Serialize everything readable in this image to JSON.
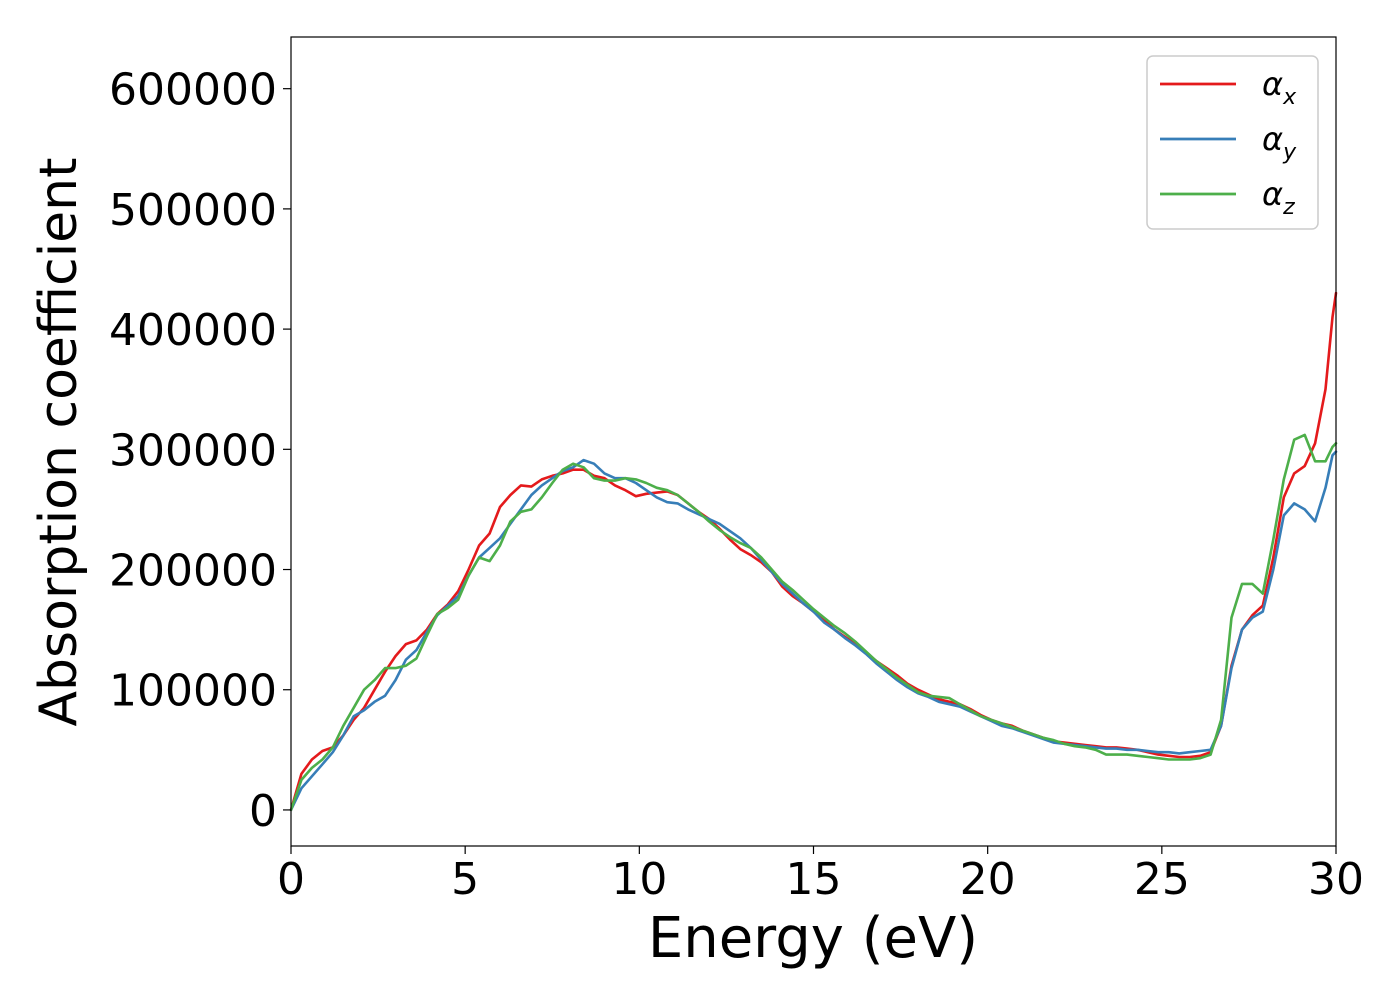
{
  "chart_data": {
    "type": "line",
    "title": "",
    "xlabel": "Energy (eV)",
    "ylabel": "Absorption coefficient",
    "xlim": [
      0,
      30
    ],
    "ylim": [
      -30000,
      643000
    ],
    "xticks": [
      0,
      5,
      10,
      15,
      20,
      25,
      30
    ],
    "xtick_labels": [
      "0",
      "5",
      "10",
      "15",
      "20",
      "25",
      "30"
    ],
    "yticks": [
      0,
      100000,
      200000,
      300000,
      400000,
      500000,
      600000
    ],
    "ytick_labels": [
      "0",
      "100000",
      "200000",
      "300000",
      "400000",
      "500000",
      "600000"
    ],
    "grid": false,
    "legend_position": "top-right",
    "series": [
      {
        "name": "αx",
        "symbol": "α",
        "subscript": "x",
        "color": "#e41a1c",
        "x": [
          0,
          0.3,
          0.6,
          0.9,
          1.2,
          1.5,
          1.8,
          2.1,
          2.4,
          2.7,
          3.0,
          3.3,
          3.6,
          3.9,
          4.2,
          4.5,
          4.8,
          5.1,
          5.4,
          5.7,
          6.0,
          6.3,
          6.6,
          6.9,
          7.2,
          7.5,
          7.8,
          8.1,
          8.4,
          8.7,
          9.0,
          9.3,
          9.6,
          9.9,
          10.2,
          10.5,
          10.8,
          11.1,
          11.4,
          11.7,
          12.0,
          12.3,
          12.6,
          12.9,
          13.2,
          13.5,
          13.8,
          14.1,
          14.4,
          14.7,
          15.0,
          15.3,
          15.6,
          15.9,
          16.2,
          16.5,
          16.8,
          17.1,
          17.4,
          17.7,
          18.0,
          18.3,
          18.6,
          18.9,
          19.2,
          19.5,
          19.8,
          20.1,
          20.4,
          20.7,
          21.0,
          21.3,
          21.6,
          21.9,
          22.2,
          22.5,
          22.8,
          23.1,
          23.4,
          23.7,
          24.0,
          24.3,
          24.6,
          24.9,
          25.2,
          25.5,
          25.8,
          26.1,
          26.4,
          26.7,
          27.0,
          27.3,
          27.6,
          27.9,
          28.2,
          28.5,
          28.8,
          29.1,
          29.4,
          29.7,
          29.9,
          30.0
        ],
        "values": [
          0,
          30000,
          42000,
          49000,
          52000,
          62000,
          75000,
          85000,
          100000,
          115000,
          128000,
          138000,
          141000,
          150000,
          163000,
          171000,
          182000,
          200000,
          220000,
          230000,
          252000,
          262000,
          270000,
          269000,
          275000,
          278000,
          280000,
          283000,
          283000,
          278000,
          276000,
          270000,
          266000,
          261000,
          263000,
          264000,
          265000,
          262000,
          255000,
          248000,
          242000,
          234000,
          225000,
          217000,
          212000,
          206000,
          198000,
          186000,
          178000,
          172000,
          165000,
          158000,
          150000,
          144000,
          138000,
          131000,
          124000,
          118000,
          112000,
          105000,
          100000,
          96000,
          92000,
          90000,
          88000,
          84000,
          79000,
          75000,
          72000,
          70000,
          66000,
          63000,
          60000,
          57000,
          56000,
          55000,
          54000,
          53000,
          52000,
          52000,
          51000,
          50000,
          48000,
          46000,
          45000,
          44000,
          44000,
          45000,
          48000,
          70000,
          120000,
          150000,
          162000,
          170000,
          210000,
          260000,
          280000,
          286000,
          305000,
          350000,
          410000,
          430000
        ]
      },
      {
        "name": "αy",
        "symbol": "α",
        "subscript": "y",
        "color": "#377eb8",
        "x": [
          0,
          0.3,
          0.6,
          0.9,
          1.2,
          1.5,
          1.8,
          2.1,
          2.4,
          2.7,
          3.0,
          3.3,
          3.6,
          3.9,
          4.2,
          4.5,
          4.8,
          5.1,
          5.4,
          5.7,
          6.0,
          6.3,
          6.6,
          6.9,
          7.2,
          7.5,
          7.8,
          8.1,
          8.4,
          8.7,
          9.0,
          9.3,
          9.6,
          9.9,
          10.2,
          10.5,
          10.8,
          11.1,
          11.4,
          11.7,
          12.0,
          12.3,
          12.6,
          12.9,
          13.2,
          13.5,
          13.8,
          14.1,
          14.4,
          14.7,
          15.0,
          15.3,
          15.6,
          15.9,
          16.2,
          16.5,
          16.8,
          17.1,
          17.4,
          17.7,
          18.0,
          18.3,
          18.6,
          18.9,
          19.2,
          19.5,
          19.8,
          20.1,
          20.4,
          20.7,
          21.0,
          21.3,
          21.6,
          21.9,
          22.2,
          22.5,
          22.8,
          23.1,
          23.4,
          23.7,
          24.0,
          24.3,
          24.6,
          24.9,
          25.2,
          25.5,
          25.8,
          26.1,
          26.4,
          26.7,
          27.0,
          27.3,
          27.6,
          27.9,
          28.2,
          28.5,
          28.8,
          29.1,
          29.4,
          29.7,
          29.9,
          30.0
        ],
        "values": [
          0,
          18000,
          28000,
          38000,
          48000,
          62000,
          78000,
          83000,
          90000,
          95000,
          108000,
          125000,
          133000,
          148000,
          162000,
          170000,
          178000,
          195000,
          210000,
          218000,
          226000,
          238000,
          250000,
          262000,
          270000,
          276000,
          282000,
          285000,
          291000,
          288000,
          280000,
          276000,
          276000,
          272000,
          266000,
          260000,
          256000,
          255000,
          250000,
          246000,
          242000,
          238000,
          232000,
          226000,
          218000,
          208000,
          198000,
          188000,
          180000,
          172000,
          165000,
          156000,
          150000,
          143000,
          137000,
          130000,
          122000,
          115000,
          108000,
          102000,
          97000,
          94000,
          90000,
          88000,
          86000,
          82000,
          78000,
          74000,
          70000,
          68000,
          65000,
          62000,
          59000,
          56000,
          55000,
          54000,
          53000,
          52000,
          51000,
          51000,
          50000,
          50000,
          49000,
          48000,
          48000,
          47000,
          48000,
          49000,
          50000,
          70000,
          118000,
          150000,
          160000,
          165000,
          200000,
          245000,
          255000,
          250000,
          240000,
          268000,
          295000,
          298000
        ]
      },
      {
        "name": "αz",
        "symbol": "α",
        "subscript": "z",
        "color": "#4daf4a",
        "x": [
          0,
          0.3,
          0.6,
          0.9,
          1.2,
          1.5,
          1.8,
          2.1,
          2.4,
          2.7,
          3.0,
          3.3,
          3.6,
          3.9,
          4.2,
          4.5,
          4.8,
          5.1,
          5.4,
          5.7,
          6.0,
          6.3,
          6.6,
          6.9,
          7.2,
          7.5,
          7.8,
          8.1,
          8.4,
          8.7,
          9.0,
          9.3,
          9.6,
          9.9,
          10.2,
          10.5,
          10.8,
          11.1,
          11.4,
          11.7,
          12.0,
          12.3,
          12.6,
          12.9,
          13.2,
          13.5,
          13.8,
          14.1,
          14.4,
          14.7,
          15.0,
          15.3,
          15.6,
          15.9,
          16.2,
          16.5,
          16.8,
          17.1,
          17.4,
          17.7,
          18.0,
          18.3,
          18.6,
          18.9,
          19.2,
          19.5,
          19.8,
          20.1,
          20.4,
          20.7,
          21.0,
          21.3,
          21.6,
          21.9,
          22.2,
          22.5,
          22.8,
          23.1,
          23.4,
          23.7,
          24.0,
          24.3,
          24.6,
          24.9,
          25.2,
          25.5,
          25.8,
          26.1,
          26.4,
          26.7,
          27.0,
          27.3,
          27.6,
          27.9,
          28.2,
          28.5,
          28.8,
          29.1,
          29.4,
          29.7,
          29.9,
          30.0
        ],
        "values": [
          0,
          25000,
          35000,
          42000,
          52000,
          70000,
          85000,
          100000,
          108000,
          118000,
          118000,
          120000,
          126000,
          145000,
          163000,
          168000,
          175000,
          195000,
          210000,
          207000,
          220000,
          240000,
          248000,
          250000,
          260000,
          272000,
          283000,
          288000,
          285000,
          276000,
          274000,
          274000,
          276000,
          275000,
          272000,
          268000,
          266000,
          262000,
          255000,
          248000,
          240000,
          233000,
          227000,
          222000,
          218000,
          210000,
          200000,
          190000,
          183000,
          175000,
          167000,
          160000,
          153000,
          147000,
          140000,
          132000,
          124000,
          117000,
          110000,
          104000,
          98000,
          95000,
          94000,
          93000,
          88000,
          83000,
          78000,
          75000,
          72000,
          69000,
          66000,
          63000,
          60000,
          58000,
          55000,
          53000,
          52000,
          50000,
          46000,
          46000,
          46000,
          45000,
          44000,
          43000,
          42000,
          42000,
          42000,
          43000,
          46000,
          75000,
          160000,
          188000,
          188000,
          180000,
          225000,
          275000,
          308000,
          312000,
          290000,
          290000,
          302000,
          305000
        ]
      }
    ]
  }
}
